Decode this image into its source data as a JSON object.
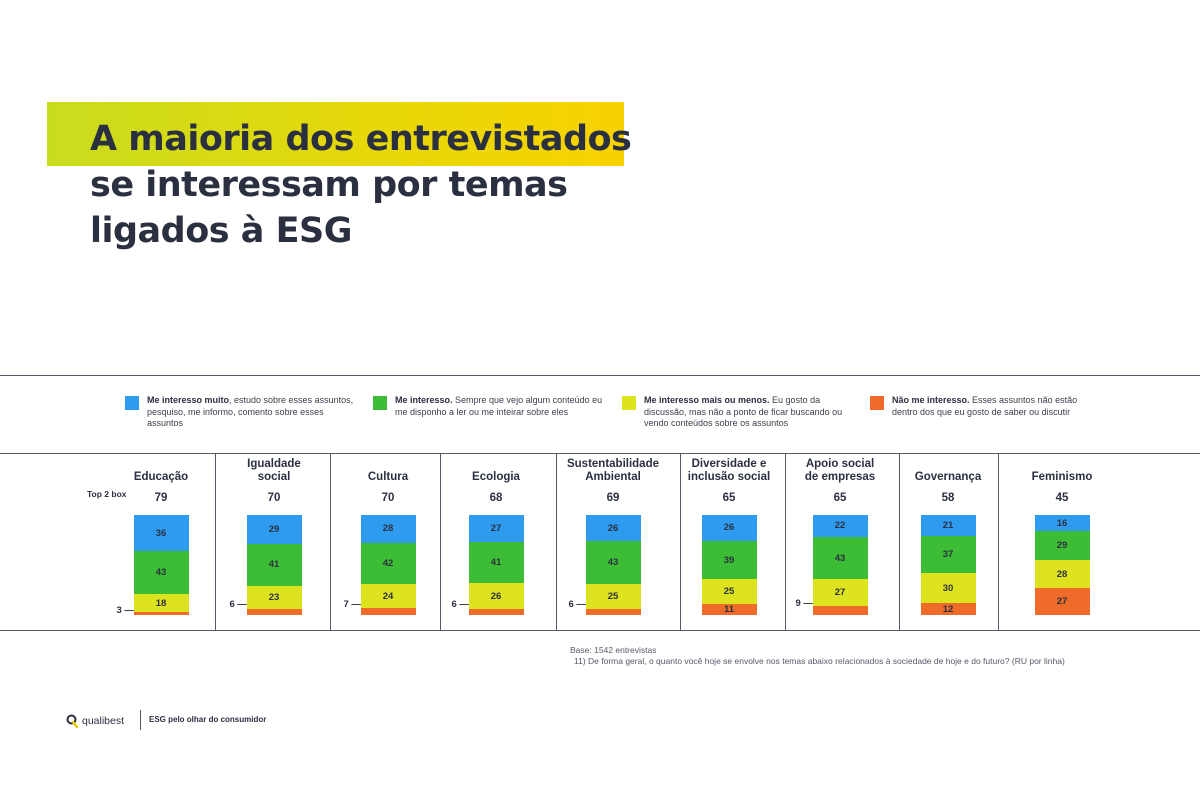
{
  "title": "A maioria dos entrevistados se interessam por temas ligados à ESG",
  "colors": {
    "muito": "#2e9bef",
    "interesso": "#3cbd35",
    "mais_ou_menos": "#dde31e",
    "nao": "#ee6b2a",
    "text": "#2b3040"
  },
  "legend": [
    {
      "bold": "Me interesso muito",
      "text": ", estudo sobre esses assuntos, pesquiso, me informo, comento sobre esses assuntos",
      "color": "#2e9bef"
    },
    {
      "bold": "Me interesso.",
      "text": " Sempre que vejo algum conteúdo eu me disponho a ler ou me inteirar sobre eles",
      "color": "#3cbd35"
    },
    {
      "bold": "Me interesso mais ou menos.",
      "text": " Eu gosto da discussão, mas não a ponto de ficar buscando ou vendo conteúdos sobre os assuntos",
      "color": "#dde31e"
    },
    {
      "bold": "Não me interesso.",
      "text": " Esses assuntos não estão dentro dos que eu gosto de saber ou discutir",
      "color": "#ee6b2a"
    }
  ],
  "top2_label": "Top 2 box",
  "chart_data": {
    "type": "bar",
    "stacked": true,
    "normalized": true,
    "categories": [
      "Educação",
      "Igualdade social",
      "Cultura",
      "Ecologia",
      "Sustentabilidade Ambiental",
      "Diversidade e inclusão social",
      "Apoio social de empresas",
      "Governança",
      "Feminismo"
    ],
    "category_lines": [
      [
        "Educação"
      ],
      [
        "Igualdade",
        "social"
      ],
      [
        "Cultura"
      ],
      [
        "Ecologia"
      ],
      [
        "Sustentabilidade",
        "Ambiental"
      ],
      [
        "Diversidade e",
        "inclusão social"
      ],
      [
        "Apoio social",
        "de empresas"
      ],
      [
        "Governança"
      ],
      [
        "Feminismo"
      ]
    ],
    "top2box": [
      79,
      70,
      70,
      68,
      69,
      65,
      65,
      58,
      45
    ],
    "series": [
      {
        "name": "Me interesso muito",
        "color": "#2e9bef",
        "values": [
          36,
          29,
          28,
          27,
          26,
          26,
          22,
          21,
          16
        ]
      },
      {
        "name": "Me interesso",
        "color": "#3cbd35",
        "values": [
          43,
          41,
          42,
          41,
          43,
          39,
          43,
          37,
          29
        ]
      },
      {
        "name": "Me interesso mais ou menos",
        "color": "#dde31e",
        "values": [
          18,
          23,
          24,
          26,
          25,
          25,
          27,
          30,
          28
        ]
      },
      {
        "name": "Não me interesso",
        "color": "#ee6b2a",
        "values": [
          3,
          6,
          7,
          6,
          6,
          11,
          9,
          12,
          27
        ]
      }
    ]
  },
  "footnote": {
    "base": "Base: 1542 entrevistas",
    "question": "11) De forma geral, o quanto você hoje se envolve nos temas abaixo relacionados à sociedade de hoje e do futuro? (RU por linha)"
  },
  "footer": {
    "brand": "qualibest",
    "tagline": "ESG pelo olhar do consumidor"
  }
}
